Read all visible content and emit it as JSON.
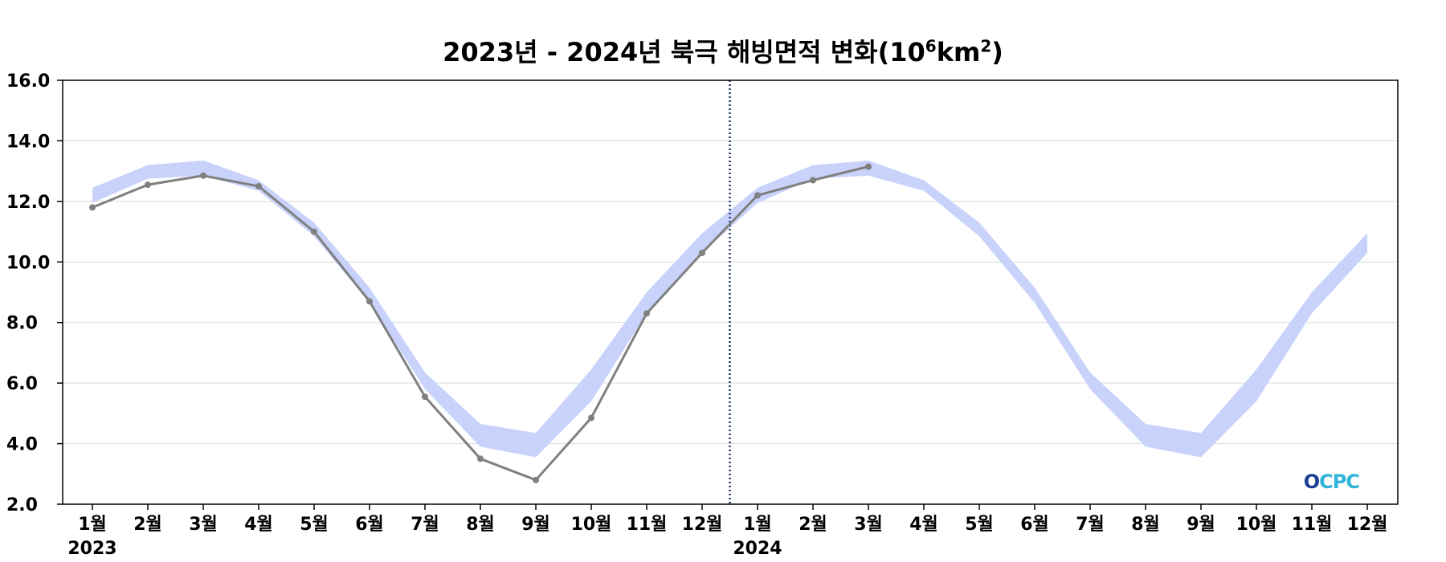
{
  "chart_data": {
    "type": "line",
    "title_prefix": "2023년 - 2024년 북극 해빙면적 변화(10",
    "title_exp1": "6",
    "title_mid": "km",
    "title_exp2": "2",
    "title_suffix": ")",
    "ylim": [
      2.0,
      16.0
    ],
    "yticks": [
      "2.0",
      "4.0",
      "6.0",
      "8.0",
      "10.0",
      "12.0",
      "14.0",
      "16.0"
    ],
    "grid": true,
    "x_labels": [
      "1월",
      "2월",
      "3월",
      "4월",
      "5월",
      "6월",
      "7월",
      "8월",
      "9월",
      "10월",
      "11월",
      "12월",
      "1월",
      "2월",
      "3월",
      "4월",
      "5월",
      "6월",
      "7월",
      "8월",
      "9월",
      "10월",
      "11월",
      "12월"
    ],
    "years": [
      {
        "label": "2023",
        "index": 0
      },
      {
        "label": "2024",
        "index": 12
      }
    ],
    "divider_after_index": 11,
    "series": [
      {
        "values": [
          11.8,
          12.55,
          12.85,
          12.5,
          11.0,
          8.7,
          5.55,
          3.5,
          2.8,
          4.85,
          8.3,
          10.3,
          12.2,
          12.7,
          13.15
        ],
        "color": "#808080"
      }
    ],
    "band": {
      "color": "#c8d2fb",
      "upper": [
        12.45,
        13.2,
        13.35,
        12.7,
        11.3,
        9.15,
        6.35,
        4.65,
        4.35,
        6.45,
        9.0,
        10.95,
        12.45,
        13.2,
        13.35,
        12.7,
        11.3,
        9.15,
        6.35,
        4.65,
        4.35,
        6.45,
        9.0,
        10.95
      ],
      "lower": [
        11.95,
        12.75,
        12.85,
        12.35,
        10.85,
        8.65,
        5.8,
        3.9,
        3.55,
        5.4,
        8.3,
        10.3,
        11.95,
        12.75,
        12.85,
        12.35,
        10.85,
        8.65,
        5.8,
        3.9,
        3.55,
        5.4,
        8.3,
        10.3
      ]
    }
  },
  "logo": {
    "text": "OCPC",
    "color_dark": "#1c3f94",
    "color_light": "#2fb4d8"
  }
}
